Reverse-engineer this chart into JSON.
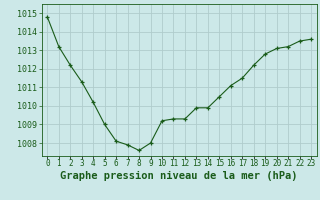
{
  "x": [
    0,
    1,
    2,
    3,
    4,
    5,
    6,
    7,
    8,
    9,
    10,
    11,
    12,
    13,
    14,
    15,
    16,
    17,
    18,
    19,
    20,
    21,
    22,
    23
  ],
  "y": [
    1014.8,
    1013.2,
    1012.2,
    1011.3,
    1010.2,
    1009.0,
    1008.1,
    1007.9,
    1007.6,
    1008.0,
    1009.2,
    1009.3,
    1009.3,
    1009.9,
    1009.9,
    1010.5,
    1011.1,
    1011.5,
    1012.2,
    1012.8,
    1013.1,
    1013.2,
    1013.5,
    1013.6
  ],
  "line_color": "#1a5c1a",
  "marker": "+",
  "bg_color": "#cce8e8",
  "grid_color": "#b0cccc",
  "ylabel_ticks": [
    1008,
    1009,
    1010,
    1011,
    1012,
    1013,
    1014,
    1015
  ],
  "xtick_labels": [
    "0",
    "1",
    "2",
    "3",
    "4",
    "5",
    "6",
    "7",
    "8",
    "9",
    "10",
    "11",
    "12",
    "13",
    "14",
    "15",
    "16",
    "17",
    "18",
    "19",
    "20",
    "21",
    "22",
    "23"
  ],
  "xlabel": "Graphe pression niveau de la mer (hPa)",
  "ylim": [
    1007.3,
    1015.5
  ],
  "xlim": [
    -0.5,
    23.5
  ],
  "axis_label_color": "#1a5c1a",
  "tick_color": "#1a5c1a",
  "xlabel_fontsize": 7.5,
  "ytick_fontsize": 6,
  "xtick_fontsize": 5.5
}
